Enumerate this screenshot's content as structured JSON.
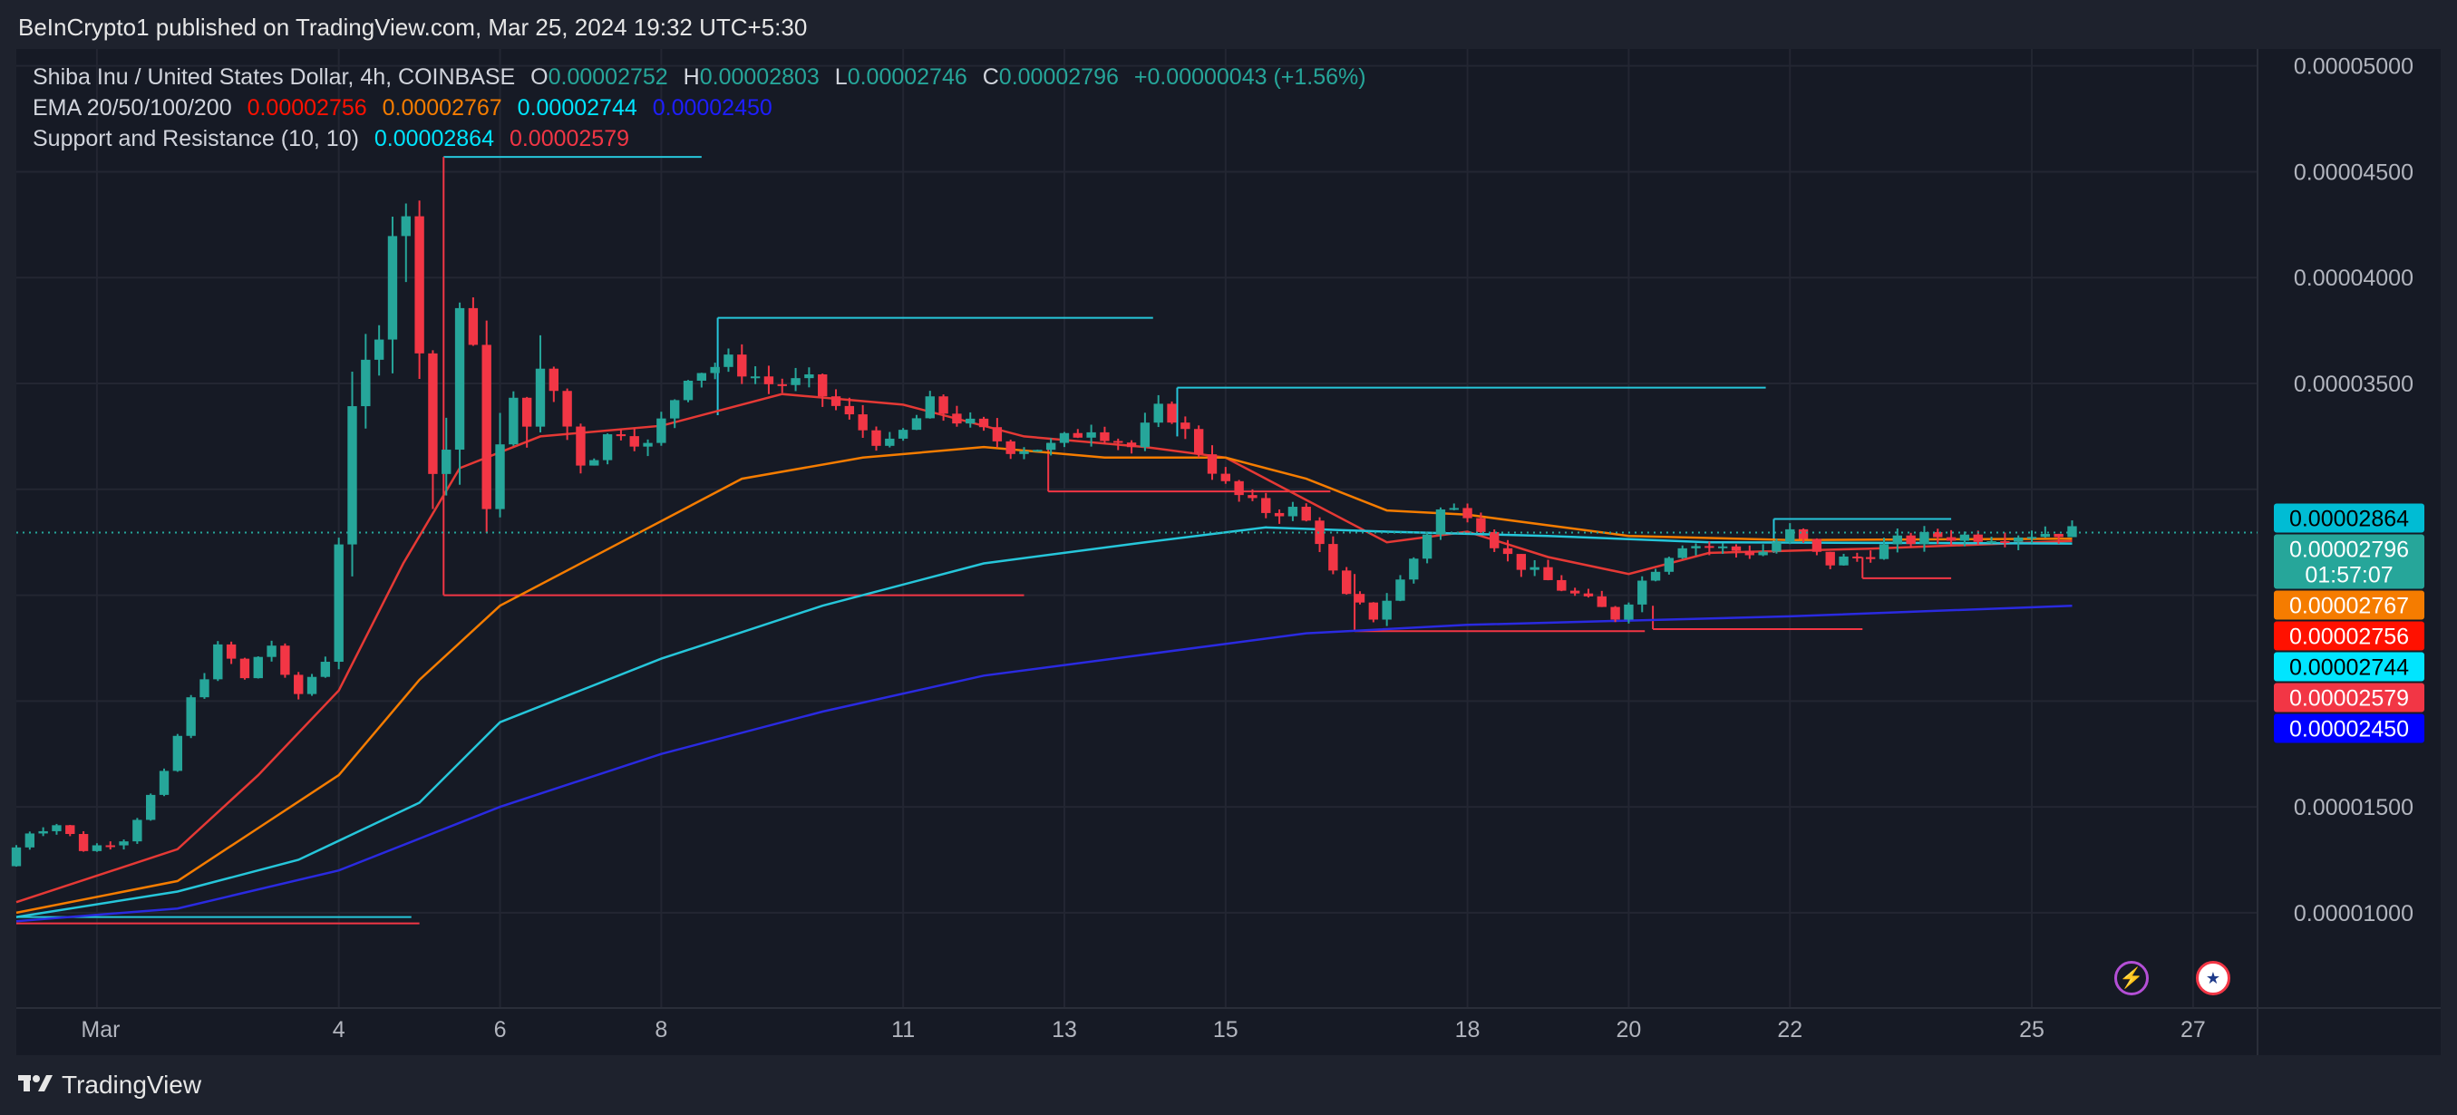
{
  "header": {
    "published": "BeInCrypto1 published on TradingView.com, Mar 25, 2024 19:32 UTC+5:30"
  },
  "legend": {
    "symbol": "Shiba Inu / United States Dollar, 4h, COINBASE",
    "o_label": "O",
    "o_value": "0.00002752",
    "h_label": "H",
    "h_value": "0.00002803",
    "l_label": "L",
    "l_value": "0.00002746",
    "c_label": "C",
    "c_value": "0.00002796",
    "change": "+0.00000043 (+1.56%)",
    "ema_label": "EMA 20/50/100/200",
    "ema20": "0.00002756",
    "ema50": "0.00002767",
    "ema100": "0.00002744",
    "ema200": "0.00002450",
    "sr_label": "Support and Resistance (10, 10)",
    "sr_res": "0.00002864",
    "sr_sup": "0.00002579"
  },
  "price_badges": [
    {
      "text": "0.00002864",
      "bg": "#00bcd4",
      "fg": "#000000",
      "price": 2.864e-05
    },
    {
      "text": "0.00002796",
      "sub": "01:57:07",
      "bg": "#26a69a",
      "fg": "#ffffff",
      "price": 2.796e-05
    },
    {
      "text": "0.00002767",
      "bg": "#f57c00",
      "fg": "#ffffff",
      "price": 2.767e-05
    },
    {
      "text": "0.00002756",
      "bg": "#ff1100",
      "fg": "#ffffff",
      "price": 2.756e-05
    },
    {
      "text": "0.00002744",
      "bg": "#00e5ff",
      "fg": "#000000",
      "price": 2.744e-05
    },
    {
      "text": "0.00002579",
      "bg": "#f23645",
      "fg": "#ffffff",
      "price": 2.579e-05
    },
    {
      "text": "0.00002450",
      "bg": "#0000ff",
      "fg": "#ffffff",
      "price": 2.45e-05
    }
  ],
  "footer": {
    "brand": "TradingView"
  },
  "icons": {
    "flash": "lightning-icon",
    "flag": "us-flag-icon"
  },
  "colors": {
    "up": "#26a69a",
    "down": "#f23645",
    "ema20": "#e53935",
    "ema50": "#f57c00",
    "ema100": "#26c6da",
    "ema200": "#2a2ae0",
    "resistance": "#26c6da",
    "support": "#f23645"
  },
  "chart_data": {
    "type": "candlestick",
    "interval": "4h",
    "x_ticks": [
      "Mar",
      "4",
      "6",
      "8",
      "11",
      "13",
      "15",
      "18",
      "20",
      "22",
      "25",
      "27"
    ],
    "x_tick_days": [
      1,
      4,
      6,
      8,
      11,
      13,
      15,
      18,
      20,
      22,
      25,
      27
    ],
    "y_ticks": [
      "0.00005000",
      "0.00004500",
      "0.00004000",
      "0.00003500",
      "0.00001500",
      "0.00001000"
    ],
    "y_tick_values": [
      5e-05,
      4.5e-05,
      4e-05,
      3.5e-05,
      1.5e-05,
      1e-05
    ],
    "ylim": [
      5.5e-06,
      5.08e-05
    ],
    "xlim_days": [
      0.0,
      27.8
    ],
    "last_price": 2.796e-05,
    "ohlc_anchors": [
      {
        "day": 0.0,
        "p": 1.22e-05
      },
      {
        "day": 0.3,
        "p": 1.38e-05
      },
      {
        "day": 0.7,
        "p": 1.42e-05
      },
      {
        "day": 1.0,
        "p": 1.3e-05
      },
      {
        "day": 1.5,
        "p": 1.35e-05
      },
      {
        "day": 2.0,
        "p": 1.65e-05
      },
      {
        "day": 2.3,
        "p": 1.98e-05
      },
      {
        "day": 2.7,
        "p": 2.27e-05
      },
      {
        "day": 3.0,
        "p": 2.1e-05
      },
      {
        "day": 3.3,
        "p": 2.3e-05
      },
      {
        "day": 3.6,
        "p": 2e-05
      },
      {
        "day": 4.0,
        "p": 2.2e-05
      },
      {
        "day": 4.3,
        "p": 3.2e-05
      },
      {
        "day": 4.6,
        "p": 3.7e-05
      },
      {
        "day": 4.85,
        "p": 4.35e-05
      },
      {
        "day": 5.1,
        "p": 4.1e-05
      },
      {
        "day": 5.4,
        "p": 2.8e-05
      },
      {
        "day": 5.7,
        "p": 4e-05
      },
      {
        "day": 6.0,
        "p": 3e-05
      },
      {
        "day": 6.4,
        "p": 3.4e-05
      },
      {
        "day": 6.8,
        "p": 3.5e-05
      },
      {
        "day": 7.2,
        "p": 3.1e-05
      },
      {
        "day": 7.6,
        "p": 3.3e-05
      },
      {
        "day": 8.0,
        "p": 3.2e-05
      },
      {
        "day": 8.5,
        "p": 3.55e-05
      },
      {
        "day": 9.0,
        "p": 3.6e-05
      },
      {
        "day": 9.5,
        "p": 3.5e-05
      },
      {
        "day": 10.0,
        "p": 3.5e-05
      },
      {
        "day": 10.6,
        "p": 3.3e-05
      },
      {
        "day": 11.0,
        "p": 3.2e-05
      },
      {
        "day": 11.5,
        "p": 3.4e-05
      },
      {
        "day": 12.0,
        "p": 3.3e-05
      },
      {
        "day": 12.5,
        "p": 3.2e-05
      },
      {
        "day": 13.0,
        "p": 3.2e-05
      },
      {
        "day": 13.5,
        "p": 3.3e-05
      },
      {
        "day": 14.0,
        "p": 3.2e-05
      },
      {
        "day": 14.4,
        "p": 3.4e-05
      },
      {
        "day": 14.8,
        "p": 3.2e-05
      },
      {
        "day": 15.2,
        "p": 3e-05
      },
      {
        "day": 15.6,
        "p": 2.9e-05
      },
      {
        "day": 16.0,
        "p": 2.9e-05
      },
      {
        "day": 16.3,
        "p": 2.8e-05
      },
      {
        "day": 16.6,
        "p": 2.5e-05
      },
      {
        "day": 17.0,
        "p": 2.4e-05
      },
      {
        "day": 17.4,
        "p": 2.6e-05
      },
      {
        "day": 17.8,
        "p": 2.9e-05
      },
      {
        "day": 18.2,
        "p": 2.9e-05
      },
      {
        "day": 18.6,
        "p": 2.7e-05
      },
      {
        "day": 19.0,
        "p": 2.6e-05
      },
      {
        "day": 19.5,
        "p": 2.5e-05
      },
      {
        "day": 20.0,
        "p": 2.4e-05
      },
      {
        "day": 20.4,
        "p": 2.6e-05
      },
      {
        "day": 20.8,
        "p": 2.75e-05
      },
      {
        "day": 21.3,
        "p": 2.72e-05
      },
      {
        "day": 21.8,
        "p": 2.7e-05
      },
      {
        "day": 22.2,
        "p": 2.8e-05
      },
      {
        "day": 22.6,
        "p": 2.65e-05
      },
      {
        "day": 23.0,
        "p": 2.68e-05
      },
      {
        "day": 23.5,
        "p": 2.75e-05
      },
      {
        "day": 24.0,
        "p": 2.78e-05
      },
      {
        "day": 24.5,
        "p": 2.78e-05
      },
      {
        "day": 25.0,
        "p": 2.79e-05
      },
      {
        "day": 25.5,
        "p": 2.8e-05
      }
    ],
    "ema_series": [
      {
        "name": "EMA 20",
        "points": [
          [
            0.0,
            1.05e-05
          ],
          [
            2.0,
            1.3e-05
          ],
          [
            3.0,
            1.65e-05
          ],
          [
            4.0,
            2.05e-05
          ],
          [
            4.8,
            2.65e-05
          ],
          [
            5.5,
            3.1e-05
          ],
          [
            6.5,
            3.25e-05
          ],
          [
            8.0,
            3.3e-05
          ],
          [
            9.5,
            3.45e-05
          ],
          [
            11.0,
            3.4e-05
          ],
          [
            12.5,
            3.25e-05
          ],
          [
            14.0,
            3.2e-05
          ],
          [
            15.0,
            3.15e-05
          ],
          [
            16.0,
            2.95e-05
          ],
          [
            17.0,
            2.75e-05
          ],
          [
            18.0,
            2.8e-05
          ],
          [
            19.0,
            2.68e-05
          ],
          [
            20.0,
            2.6e-05
          ],
          [
            21.0,
            2.7e-05
          ],
          [
            23.0,
            2.72e-05
          ],
          [
            25.5,
            2.756e-05
          ]
        ]
      },
      {
        "name": "EMA 50",
        "points": [
          [
            0.0,
            1e-05
          ],
          [
            2.0,
            1.15e-05
          ],
          [
            3.0,
            1.4e-05
          ],
          [
            4.0,
            1.65e-05
          ],
          [
            5.0,
            2.1e-05
          ],
          [
            6.0,
            2.45e-05
          ],
          [
            7.5,
            2.75e-05
          ],
          [
            9.0,
            3.05e-05
          ],
          [
            10.5,
            3.15e-05
          ],
          [
            12.0,
            3.2e-05
          ],
          [
            13.5,
            3.15e-05
          ],
          [
            15.0,
            3.15e-05
          ],
          [
            16.0,
            3.05e-05
          ],
          [
            17.0,
            2.9e-05
          ],
          [
            18.0,
            2.88e-05
          ],
          [
            20.0,
            2.78e-05
          ],
          [
            22.0,
            2.76e-05
          ],
          [
            25.5,
            2.767e-05
          ]
        ]
      },
      {
        "name": "EMA 100",
        "points": [
          [
            0.0,
            9.8e-06
          ],
          [
            2.0,
            1.1e-05
          ],
          [
            3.5,
            1.25e-05
          ],
          [
            5.0,
            1.52e-05
          ],
          [
            6.0,
            1.9e-05
          ],
          [
            8.0,
            2.2e-05
          ],
          [
            10.0,
            2.45e-05
          ],
          [
            12.0,
            2.65e-05
          ],
          [
            14.0,
            2.75e-05
          ],
          [
            15.5,
            2.82e-05
          ],
          [
            17.0,
            2.8e-05
          ],
          [
            19.0,
            2.78e-05
          ],
          [
            21.0,
            2.75e-05
          ],
          [
            25.5,
            2.744e-05
          ]
        ]
      },
      {
        "name": "EMA 200",
        "points": [
          [
            0.0,
            9.6e-06
          ],
          [
            2.0,
            1.02e-05
          ],
          [
            4.0,
            1.2e-05
          ],
          [
            6.0,
            1.5e-05
          ],
          [
            8.0,
            1.75e-05
          ],
          [
            10.0,
            1.95e-05
          ],
          [
            12.0,
            2.12e-05
          ],
          [
            14.0,
            2.22e-05
          ],
          [
            16.0,
            2.32e-05
          ],
          [
            18.0,
            2.36e-05
          ],
          [
            20.0,
            2.38e-05
          ],
          [
            22.0,
            2.4e-05
          ],
          [
            25.5,
            2.45e-05
          ]
        ]
      }
    ],
    "sr_lines": [
      {
        "kind": "resistance",
        "from": 5.3,
        "to": 8.5,
        "price": 4.57e-05
      },
      {
        "kind": "resistance",
        "from": 8.7,
        "to": 14.1,
        "price": 3.81e-05
      },
      {
        "kind": "resistance",
        "from": 14.4,
        "to": 21.7,
        "price": 3.48e-05
      },
      {
        "kind": "resistance",
        "from": 21.8,
        "to": 24.0,
        "price": 2.86e-05
      },
      {
        "kind": "resistance",
        "from": 0.0,
        "to": 4.9,
        "price": 9.8e-06
      },
      {
        "kind": "support",
        "from": 0.0,
        "to": 5.0,
        "price": 9.5e-06
      },
      {
        "kind": "support",
        "from": 5.3,
        "to": 12.5,
        "price": 2.5e-05
      },
      {
        "kind": "support",
        "from": 12.8,
        "to": 16.3,
        "price": 2.99e-05
      },
      {
        "kind": "support",
        "from": 16.6,
        "to": 20.2,
        "price": 2.33e-05
      },
      {
        "kind": "support",
        "from": 20.3,
        "to": 22.9,
        "price": 2.34e-05
      },
      {
        "kind": "support",
        "from": 22.9,
        "to": 24.0,
        "price": 2.58e-05
      }
    ]
  }
}
